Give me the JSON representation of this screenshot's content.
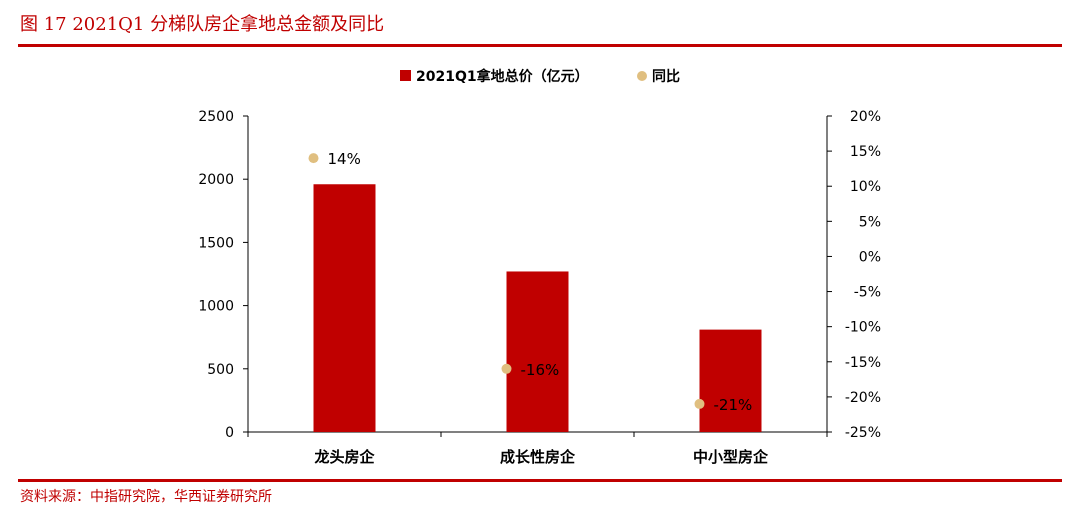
{
  "figure": {
    "title": "图 17   2021Q1 分梯队房企拿地总金额及同比",
    "source": "资料来源：中指研究院，华西证券研究所"
  },
  "chart_data": {
    "type": "bar",
    "categories": [
      "龙头房企",
      "成长性房企",
      "中小型房企"
    ],
    "series": [
      {
        "name": "2021Q1拿地总价（亿元）",
        "kind": "bar",
        "axis": "left",
        "color": "#c00000",
        "values": [
          1960,
          1270,
          810
        ]
      },
      {
        "name": "同比",
        "kind": "scatter",
        "axis": "right",
        "color": "#e0bf80",
        "values": [
          0.14,
          -0.16,
          -0.21
        ],
        "labels": [
          "14%",
          "-16%",
          "-21%"
        ]
      }
    ],
    "y_left": {
      "min": 0,
      "max": 2500,
      "ticks": [
        "0",
        "500",
        "1000",
        "1500",
        "2000",
        "2500"
      ]
    },
    "y_right": {
      "min": -0.25,
      "max": 0.2,
      "ticks": [
        "-25%",
        "-20%",
        "-15%",
        "-10%",
        "-5%",
        "0%",
        "5%",
        "10%",
        "15%",
        "20%"
      ]
    },
    "legend_position": "top-center",
    "grid": false
  }
}
